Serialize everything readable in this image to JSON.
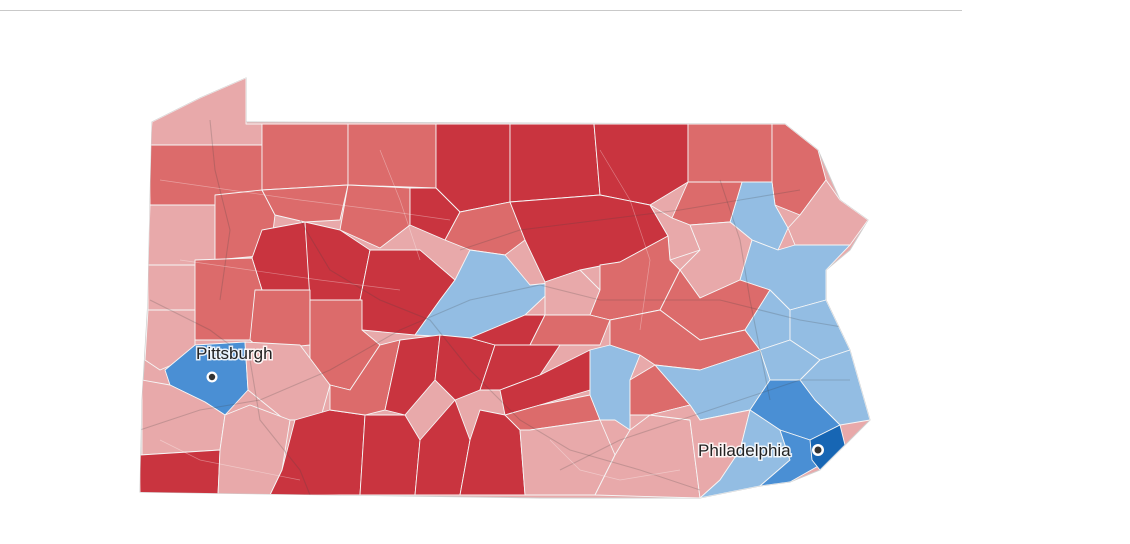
{
  "map": {
    "legend_colors": {
      "dark_red": "#c9343f",
      "medium_red": "#dc6b6b",
      "light_red": "#e8a9aa",
      "light_blue": "#93bde3",
      "medium_blue": "#4a8fd4",
      "dark_blue": "#1766b4"
    },
    "cities": [
      {
        "name": "Pittsburgh",
        "icon": "city-dot-icon"
      },
      {
        "name": "Philadelphia",
        "icon": "city-dot-icon"
      }
    ]
  }
}
